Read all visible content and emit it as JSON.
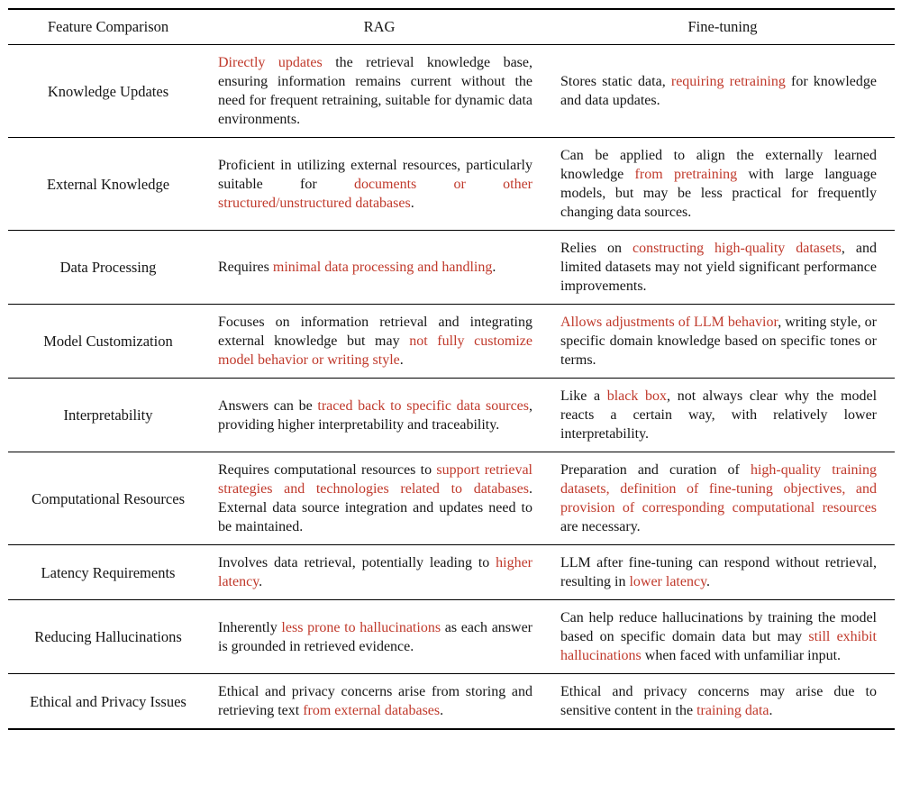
{
  "colors": {
    "highlight": "#c0392b",
    "text": "#151515",
    "rule": "#000000",
    "background": "#ffffff"
  },
  "table": {
    "headers": [
      "Feature Comparison",
      "RAG",
      "Fine-tuning"
    ],
    "rows": [
      {
        "feature": "Knowledge Updates",
        "rag": [
          {
            "t": "Directly updates",
            "red": true
          },
          {
            "t": " the retrieval knowledge base, ensuring information remains current without the need for frequent retraining, suitable for dynamic data environments.",
            "red": false
          }
        ],
        "finetuning": [
          {
            "t": "Stores static data, ",
            "red": false
          },
          {
            "t": "requiring retraining",
            "red": true
          },
          {
            "t": " for knowledge and data updates.",
            "red": false
          }
        ]
      },
      {
        "feature": "External Knowledge",
        "rag": [
          {
            "t": "Proficient in utilizing external resources, particularly suitable for ",
            "red": false
          },
          {
            "t": "documents or other structured/unstructured databases",
            "red": true
          },
          {
            "t": ".",
            "red": false
          }
        ],
        "finetuning": [
          {
            "t": "Can be applied to align the externally learned knowledge ",
            "red": false
          },
          {
            "t": "from pretraining",
            "red": true
          },
          {
            "t": " with large language models, but may be less practical for frequently changing data sources.",
            "red": false
          }
        ]
      },
      {
        "feature": "Data Processing",
        "rag": [
          {
            "t": "Requires ",
            "red": false
          },
          {
            "t": "minimal data processing and handling",
            "red": true
          },
          {
            "t": ".",
            "red": false
          }
        ],
        "finetuning": [
          {
            "t": "Relies on ",
            "red": false
          },
          {
            "t": "constructing high-quality datasets",
            "red": true
          },
          {
            "t": ", and limited datasets may not yield significant performance improvements.",
            "red": false
          }
        ]
      },
      {
        "feature": "Model Customization",
        "rag": [
          {
            "t": "Focuses on information retrieval and integrating external knowledge but may ",
            "red": false
          },
          {
            "t": "not fully customize model behavior or writing style",
            "red": true
          },
          {
            "t": ".",
            "red": false
          }
        ],
        "finetuning": [
          {
            "t": "Allows adjustments of LLM behavior",
            "red": true
          },
          {
            "t": ", writing style, or specific domain knowledge based on specific tones or terms.",
            "red": false
          }
        ]
      },
      {
        "feature": "Interpretability",
        "rag": [
          {
            "t": "Answers can be ",
            "red": false
          },
          {
            "t": "traced back to specific data sources",
            "red": true
          },
          {
            "t": ", providing higher interpretability and traceability.",
            "red": false
          }
        ],
        "finetuning": [
          {
            "t": "Like a ",
            "red": false
          },
          {
            "t": "black box",
            "red": true
          },
          {
            "t": ", not always clear why the model reacts a certain way, with relatively lower interpretability.",
            "red": false
          }
        ]
      },
      {
        "feature": "Computational Resources",
        "rag": [
          {
            "t": "Requires computational resources to ",
            "red": false
          },
          {
            "t": "support retrieval strategies and technologies related to databases",
            "red": true
          },
          {
            "t": ". External data source integration and updates need to be maintained.",
            "red": false
          }
        ],
        "finetuning": [
          {
            "t": "Preparation and curation of ",
            "red": false
          },
          {
            "t": "high-quality training datasets, definition of fine-tuning objectives, and provision of corresponding computational resources",
            "red": true
          },
          {
            "t": " are necessary.",
            "red": false
          }
        ]
      },
      {
        "feature": "Latency Requirements",
        "rag": [
          {
            "t": "Involves data retrieval, potentially leading to ",
            "red": false
          },
          {
            "t": "higher latency",
            "red": true
          },
          {
            "t": ".",
            "red": false
          }
        ],
        "finetuning": [
          {
            "t": "LLM after fine-tuning can respond without retrieval, resulting in ",
            "red": false
          },
          {
            "t": "lower latency",
            "red": true
          },
          {
            "t": ".",
            "red": false
          }
        ]
      },
      {
        "feature": "Reducing Hallucinations",
        "rag": [
          {
            "t": "Inherently ",
            "red": false
          },
          {
            "t": "less prone to hallucinations",
            "red": true
          },
          {
            "t": " as each answer is grounded in retrieved evidence.",
            "red": false
          }
        ],
        "finetuning": [
          {
            "t": "Can help reduce hallucinations by training the model based on specific domain data but may ",
            "red": false
          },
          {
            "t": "still exhibit hallucinations",
            "red": true
          },
          {
            "t": " when faced with unfamiliar input.",
            "red": false
          }
        ]
      },
      {
        "feature": "Ethical and Privacy Issues",
        "rag": [
          {
            "t": "Ethical and privacy concerns arise from storing and retrieving text ",
            "red": false
          },
          {
            "t": "from external databases",
            "red": true
          },
          {
            "t": ".",
            "red": false
          }
        ],
        "finetuning": [
          {
            "t": "Ethical and privacy concerns may arise due to sensitive content in the ",
            "red": false
          },
          {
            "t": "training data",
            "red": true
          },
          {
            "t": ".",
            "red": false
          }
        ]
      }
    ]
  }
}
